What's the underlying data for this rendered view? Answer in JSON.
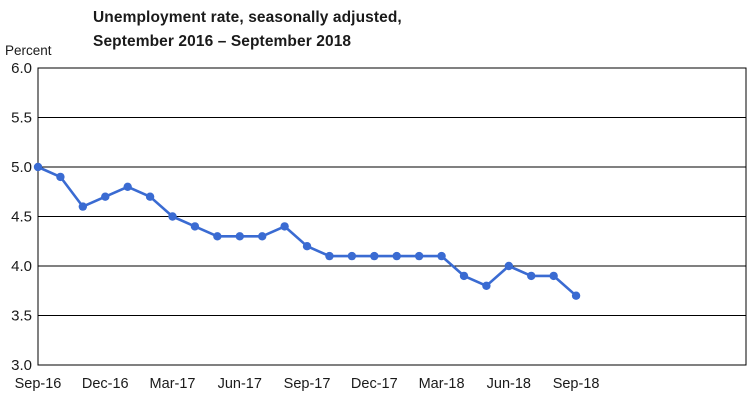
{
  "chart_data": {
    "type": "line",
    "title_line1": "Unemployment rate, seasonally adjusted,",
    "title_line2": "September 2016 – September 2018",
    "ylabel": "Percent",
    "xlabel": "",
    "ylim": [
      3.0,
      6.0
    ],
    "y_tick_step": 0.5,
    "y_tick_labels": [
      "3.0",
      "3.5",
      "4.0",
      "4.5",
      "5.0",
      "5.5",
      "6.0"
    ],
    "categories": [
      "Sep-16",
      "Oct-16",
      "Nov-16",
      "Dec-16",
      "Jan-17",
      "Feb-17",
      "Mar-17",
      "Apr-17",
      "May-17",
      "Jun-17",
      "Jul-17",
      "Aug-17",
      "Sep-17",
      "Oct-17",
      "Nov-17",
      "Dec-17",
      "Jan-18",
      "Feb-18",
      "Mar-18",
      "Apr-18",
      "May-18",
      "Jun-18",
      "Jul-18",
      "Aug-18",
      "Sep-18"
    ],
    "x_tick_labels": [
      "Sep-16",
      "Dec-16",
      "Mar-17",
      "Jun-17",
      "Sep-17",
      "Dec-17",
      "Mar-18",
      "Jun-18",
      "Sep-18"
    ],
    "x_tick_every": 3,
    "series": [
      {
        "name": "Unemployment rate",
        "values": [
          5.0,
          4.9,
          4.6,
          4.7,
          4.8,
          4.7,
          4.5,
          4.4,
          4.3,
          4.3,
          4.3,
          4.4,
          4.2,
          4.1,
          4.1,
          4.1,
          4.1,
          4.1,
          4.1,
          3.9,
          3.8,
          4.0,
          3.9,
          3.9,
          3.7
        ]
      }
    ],
    "line_color": "#3A6BD2",
    "grid_color": "#000000",
    "text_color": "#1a1a1a",
    "grid": true,
    "legend": "none",
    "x_axis_fill_fraction": 0.76
  }
}
